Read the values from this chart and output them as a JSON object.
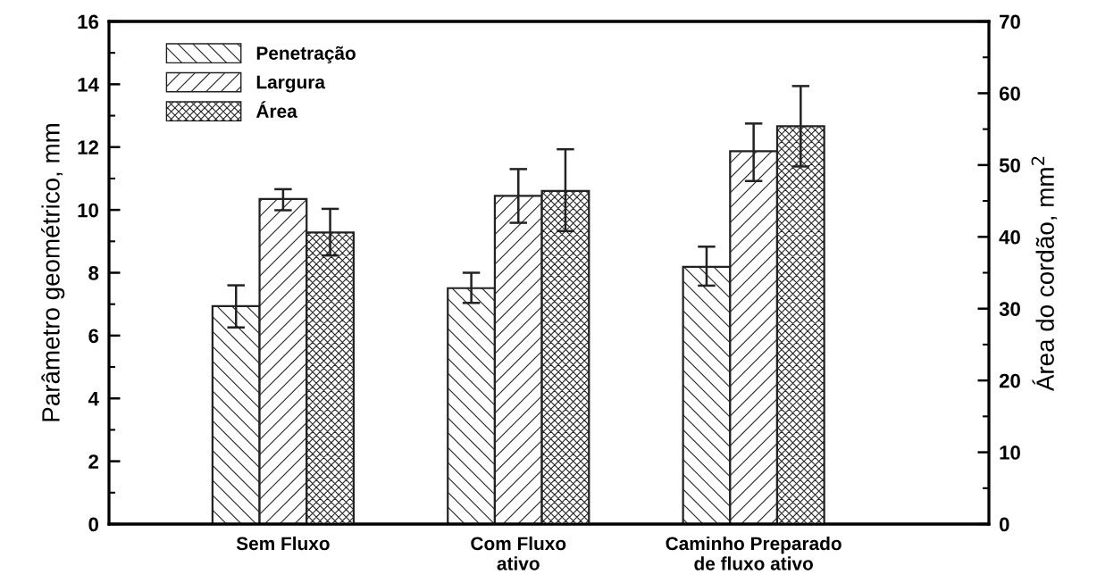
{
  "chart_data": {
    "type": "bar",
    "categories": [
      "Sem Fluxo",
      "Com Fluxo\nativo",
      "Caminho Preparado\nde fluxo ativo"
    ],
    "ylabel": "Parâmetro geométrico, mm",
    "y2label": "Área do cordão, mm$^{2}$",
    "ylim": [
      0,
      16
    ],
    "yticks": [
      0,
      2,
      4,
      6,
      8,
      10,
      12,
      14,
      16
    ],
    "y2lim": [
      0,
      70
    ],
    "y2ticks": [
      0,
      10,
      20,
      30,
      40,
      50,
      60,
      70
    ],
    "legend": "top left",
    "grid": false,
    "series": [
      {
        "name": "Penetração",
        "color": "#222222",
        "values": [
          6.94,
          7.51,
          8.19
        ],
        "errors": [
          [
            6.26,
            7.6
          ],
          [
            7.04,
            8.0
          ],
          [
            7.59,
            8.83
          ]
        ]
      },
      {
        "name": "Largura",
        "color": "#222222",
        "values": [
          10.35,
          10.45,
          11.87
        ],
        "errors": [
          [
            9.99,
            10.66
          ],
          [
            9.59,
            11.3
          ],
          [
            10.92,
            12.75
          ]
        ]
      },
      {
        "name": "Área",
        "color": "#222222",
        "axis": "y2",
        "values": [
          40.6,
          46.4,
          55.4
        ],
        "errors": [
          [
            37.4,
            43.9
          ],
          [
            40.8,
            52.2
          ],
          [
            49.8,
            61.0
          ]
        ]
      }
    ]
  }
}
